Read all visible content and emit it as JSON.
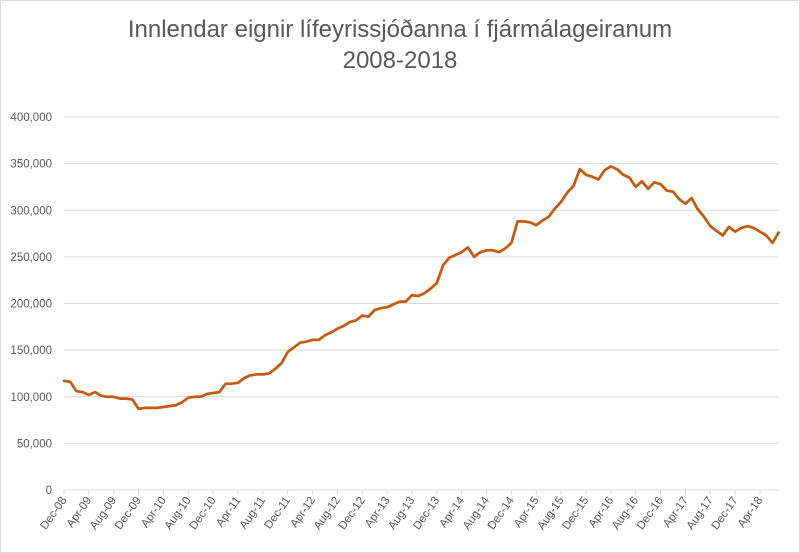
{
  "chart_data": {
    "type": "line",
    "title": "Innlendar eignir lífeyrissjóðanna í fjármálageiranum",
    "subtitle": "2008-2018",
    "xlabel": "",
    "ylabel": "",
    "ylim": [
      0,
      400000
    ],
    "yticks": [
      0,
      50000,
      100000,
      150000,
      200000,
      250000,
      300000,
      350000,
      400000
    ],
    "ytick_labels": [
      "0",
      "50,000",
      "100,000",
      "150,000",
      "200,000",
      "250,000",
      "300,000",
      "350,000",
      "400,000"
    ],
    "xtick_labels": [
      "Dec-08",
      "Apr-09",
      "Aug-09",
      "Dec-09",
      "Apr-10",
      "Aug-10",
      "Dec-10",
      "Apr-11",
      "Aug-11",
      "Dec-11",
      "Apr-12",
      "Aug-12",
      "Dec-12",
      "Apr-13",
      "Aug-13",
      "Dec-13",
      "Apr-14",
      "Aug-14",
      "Dec-14",
      "Apr-15",
      "Aug-15",
      "Dec-15",
      "Apr-16",
      "Aug-16",
      "Dec-16",
      "Apr-17",
      "Aug-17",
      "Dec-17",
      "Apr-18"
    ],
    "grid": true,
    "legend": "none",
    "series": [
      {
        "name": "Innlendar eignir",
        "color": "#c55a11",
        "start": "Dec-08",
        "frequency": "monthly",
        "values": [
          117000,
          116000,
          106000,
          105000,
          102000,
          105000,
          101000,
          100000,
          100000,
          98000,
          98000,
          97000,
          87000,
          88000,
          88000,
          88000,
          89000,
          90000,
          91000,
          94000,
          99000,
          100000,
          100000,
          103000,
          104000,
          105000,
          114000,
          114000,
          115000,
          120000,
          123000,
          124000,
          124000,
          125000,
          130000,
          136000,
          148000,
          153000,
          158000,
          159000,
          161000,
          161000,
          166000,
          169000,
          173000,
          176000,
          180000,
          182000,
          187000,
          186000,
          193000,
          195000,
          196000,
          199000,
          202000,
          202000,
          209000,
          208000,
          211000,
          216000,
          222000,
          241000,
          249000,
          252000,
          255000,
          260000,
          250000,
          255000,
          257000,
          257000,
          255000,
          259000,
          265000,
          288000,
          288000,
          287000,
          284000,
          289000,
          293000,
          302000,
          309000,
          319000,
          326000,
          344000,
          338000,
          336000,
          333000,
          343000,
          347000,
          344000,
          338000,
          335000,
          325000,
          331000,
          323000,
          330000,
          328000,
          321000,
          320000,
          312000,
          307000,
          313000,
          301000,
          293000,
          283000,
          278000,
          273000,
          282000,
          277000,
          281000,
          283000,
          281000,
          277000,
          273000,
          265000,
          276000
        ]
      }
    ]
  }
}
